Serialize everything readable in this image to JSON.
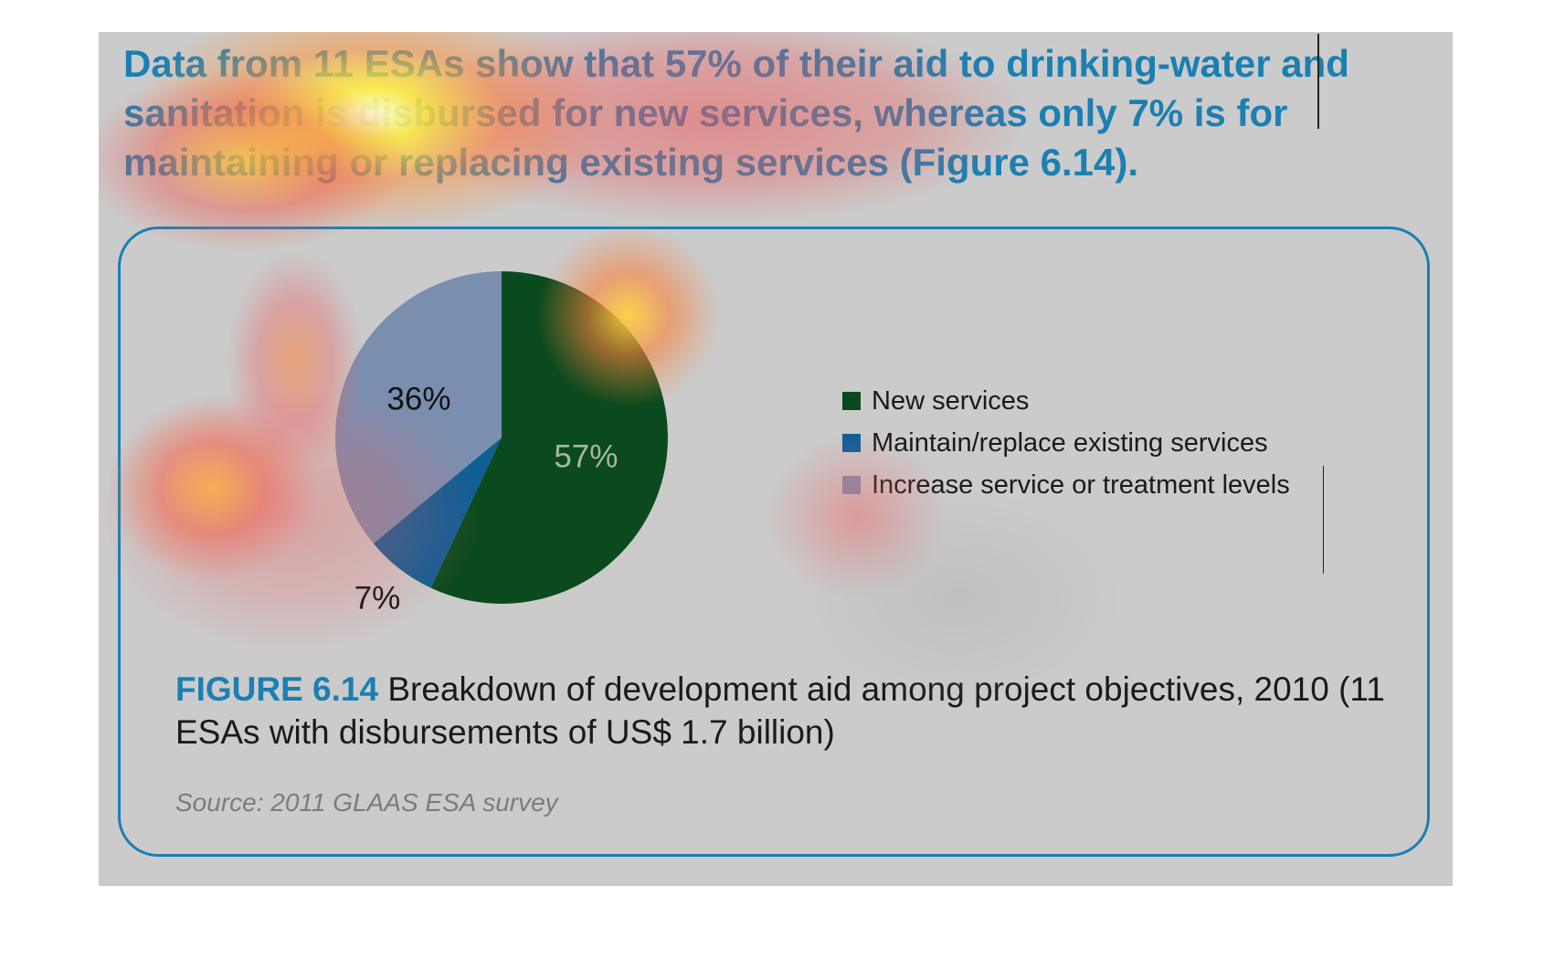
{
  "headline": "Data from 11 ESAs show that 57% of their aid to drinking-water and sanitation is disbursed for new services, whereas only 7% is for maintaining or replacing existing services (Figure 6.14).",
  "figure": {
    "label": "FIGURE 6.14",
    "caption": " Breakdown of development aid among project objectives, 2010 (11 ESAs with disbursements of US$ 1.7 billion)",
    "source": "Source: 2011 GLAAS ESA survey"
  },
  "colors": {
    "accent": "#1b7fb2",
    "background": "#cbcbcb"
  },
  "chart_data": {
    "type": "pie",
    "slices": [
      {
        "label": "New services",
        "value": 57,
        "display": "57%",
        "color": "#0b4a1e",
        "text_color": "#a9b79c"
      },
      {
        "label": "Maintain/replace existing services",
        "value": 7,
        "display": "7%",
        "color": "#0f5f96",
        "text_color": "#111111"
      },
      {
        "label": "Increase service or treatment levels",
        "value": 36,
        "display": "36%",
        "color": "#7a8fb0",
        "text_color": "#111111"
      }
    ],
    "legend_position": "right"
  }
}
